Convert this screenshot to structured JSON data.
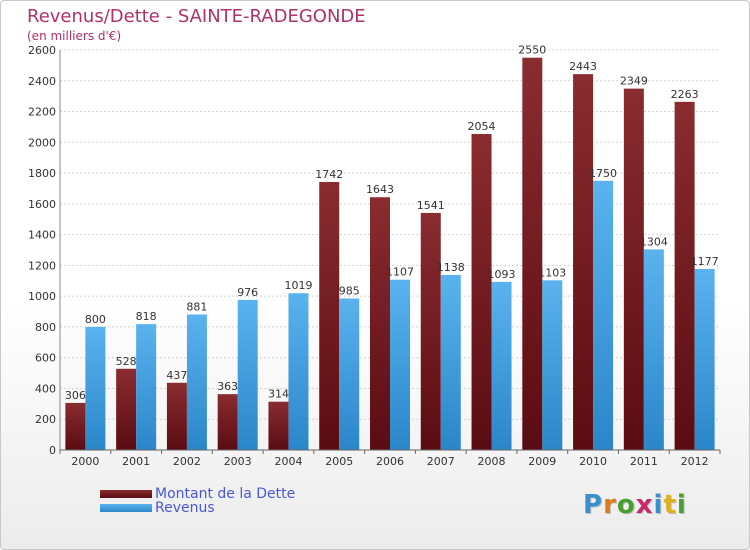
{
  "header": {
    "title": "Revenus/Dette - SAINTE-RADEGONDE",
    "subtitle": "(en milliers d'€)"
  },
  "colors": {
    "dette": "#7a1f24",
    "revenus": "#3f9fe0",
    "title": "#b0306a",
    "legend_text": "#4a58d6"
  },
  "legend": [
    {
      "label": "Montant de la Dette",
      "color": "#7a1f24"
    },
    {
      "label": "Revenus",
      "color": "#3f9fe0"
    }
  ],
  "logo": {
    "text": "Proxiti",
    "letter_colors": [
      "#3a8fd0",
      "#e07b1a",
      "#4a9e2f",
      "#c9286b",
      "#3a8fd0",
      "#e0b21a",
      "#4a9e2f"
    ]
  },
  "chart_data": {
    "type": "bar",
    "title": "Revenus/Dette - SAINTE-RADEGONDE",
    "subtitle": "(en milliers d'€)",
    "categories": [
      "2000",
      "2001",
      "2002",
      "2003",
      "2004",
      "2005",
      "2006",
      "2007",
      "2008",
      "2009",
      "2010",
      "2011",
      "2012"
    ],
    "series": [
      {
        "name": "Montant de la Dette",
        "values": [
          306,
          528,
          437,
          363,
          314,
          1742,
          1643,
          1541,
          2054,
          2550,
          2443,
          2349,
          2263
        ]
      },
      {
        "name": "Revenus",
        "values": [
          800,
          818,
          881,
          976,
          1019,
          985,
          1107,
          1138,
          1093,
          1103,
          1750,
          1304,
          1177
        ]
      }
    ],
    "ylim": [
      0,
      2600
    ],
    "yticks": [
      0,
      200,
      400,
      600,
      800,
      1000,
      1200,
      1400,
      1600,
      1800,
      2000,
      2200,
      2400,
      2600
    ],
    "grid": true,
    "legend_position": "bottom-left"
  }
}
